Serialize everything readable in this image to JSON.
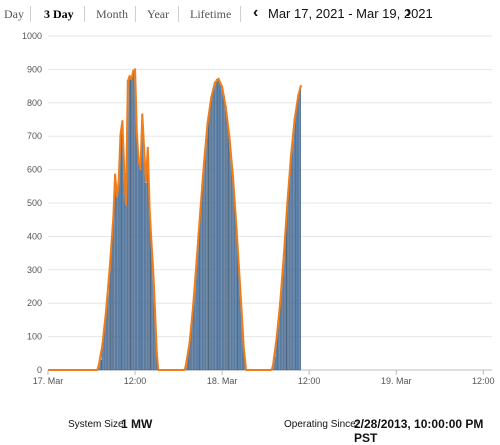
{
  "tabs": [
    {
      "label": "Day",
      "active": false
    },
    {
      "label": "3 Day",
      "active": true
    },
    {
      "label": "Month",
      "active": false
    },
    {
      "label": "Year",
      "active": false
    },
    {
      "label": "Lifetime",
      "active": false
    }
  ],
  "date_range": "Mar 17, 2021 - Mar 19, 2021",
  "footer": {
    "system_size_label": "System Size:",
    "system_size_value": "1 MW",
    "operating_since_label": "Operating Since:",
    "operating_since_value": "2/28/2013, 10:00:00 PM PST"
  },
  "colors": {
    "bar": "#6b8fb5",
    "bar_edge": "#2f4f73",
    "line": "#f07d1a"
  },
  "chart_data": {
    "type": "bar",
    "ylim": [
      0,
      1000
    ],
    "yticks": [
      0,
      100,
      200,
      300,
      400,
      500,
      600,
      700,
      800,
      900,
      1000
    ],
    "x_tick_labels": [
      "17. Mar",
      "12:00",
      "18. Mar",
      "12:00",
      "19. Mar",
      "12:00"
    ],
    "x_tick_hours": [
      0,
      12,
      24,
      36,
      48,
      60
    ],
    "x_range_hours": [
      0,
      61.2
    ],
    "series": [
      {
        "kind": "bars",
        "points": [
          [
            7.0,
            10
          ],
          [
            7.25,
            30
          ],
          [
            7.5,
            70
          ],
          [
            7.75,
            120
          ],
          [
            8.0,
            170
          ],
          [
            8.25,
            230
          ],
          [
            8.5,
            300
          ],
          [
            8.75,
            380
          ],
          [
            9.0,
            450
          ],
          [
            9.25,
            580
          ],
          [
            9.5,
            520
          ],
          [
            9.75,
            560
          ],
          [
            10.0,
            700
          ],
          [
            10.25,
            740
          ],
          [
            10.5,
            600
          ],
          [
            10.75,
            500
          ],
          [
            11.0,
            860
          ],
          [
            11.25,
            880
          ],
          [
            11.5,
            870
          ],
          [
            11.75,
            890
          ],
          [
            12.0,
            900
          ],
          [
            12.25,
            700
          ],
          [
            12.5,
            620
          ],
          [
            12.75,
            600
          ],
          [
            13.0,
            760
          ],
          [
            13.25,
            660
          ],
          [
            13.5,
            560
          ],
          [
            13.75,
            660
          ],
          [
            14.0,
            480
          ],
          [
            14.25,
            380
          ],
          [
            14.5,
            300
          ],
          [
            14.75,
            180
          ],
          [
            15.0,
            50
          ],
          [
            19.0,
            10
          ],
          [
            19.25,
            40
          ],
          [
            19.5,
            80
          ],
          [
            19.75,
            130
          ],
          [
            20.0,
            190
          ],
          [
            20.25,
            260
          ],
          [
            20.5,
            330
          ],
          [
            20.75,
            410
          ],
          [
            21.0,
            480
          ],
          [
            21.25,
            550
          ],
          [
            21.5,
            620
          ],
          [
            21.75,
            690
          ],
          [
            22.0,
            740
          ],
          [
            22.25,
            780
          ],
          [
            22.5,
            815
          ],
          [
            22.75,
            840
          ],
          [
            23.0,
            860
          ],
          [
            23.25,
            870
          ],
          [
            23.5,
            870
          ],
          [
            23.75,
            860
          ],
          [
            24.0,
            845
          ],
          [
            24.25,
            820
          ],
          [
            24.5,
            785
          ],
          [
            24.75,
            745
          ],
          [
            25.0,
            695
          ],
          [
            25.25,
            640
          ],
          [
            25.5,
            575
          ],
          [
            25.75,
            500
          ],
          [
            26.0,
            420
          ],
          [
            26.25,
            330
          ],
          [
            26.5,
            240
          ],
          [
            26.75,
            150
          ],
          [
            27.0,
            60
          ],
          [
            27.25,
            15
          ],
          [
            31.0,
            10
          ],
          [
            31.25,
            40
          ],
          [
            31.5,
            90
          ],
          [
            31.75,
            140
          ],
          [
            32.0,
            200
          ],
          [
            32.25,
            270
          ],
          [
            32.5,
            340
          ],
          [
            32.75,
            420
          ],
          [
            33.0,
            500
          ],
          [
            33.25,
            570
          ],
          [
            33.5,
            640
          ],
          [
            33.75,
            700
          ],
          [
            34.0,
            750
          ],
          [
            34.25,
            790
          ],
          [
            34.5,
            820
          ],
          [
            34.75,
            845
          ]
        ]
      },
      {
        "kind": "line",
        "points": [
          [
            0,
            0
          ],
          [
            6.8,
            0
          ],
          [
            7.0,
            15
          ],
          [
            7.5,
            75
          ],
          [
            8.0,
            175
          ],
          [
            8.5,
            305
          ],
          [
            9.0,
            455
          ],
          [
            9.25,
            585
          ],
          [
            9.5,
            520
          ],
          [
            9.75,
            565
          ],
          [
            10.0,
            705
          ],
          [
            10.25,
            745
          ],
          [
            10.5,
            600
          ],
          [
            10.75,
            495
          ],
          [
            11.0,
            865
          ],
          [
            11.25,
            880
          ],
          [
            11.5,
            870
          ],
          [
            11.75,
            895
          ],
          [
            12.0,
            900
          ],
          [
            12.25,
            705
          ],
          [
            12.5,
            625
          ],
          [
            12.75,
            605
          ],
          [
            13.0,
            765
          ],
          [
            13.25,
            665
          ],
          [
            13.5,
            565
          ],
          [
            13.75,
            665
          ],
          [
            14.0,
            485
          ],
          [
            14.25,
            385
          ],
          [
            14.5,
            300
          ],
          [
            14.75,
            180
          ],
          [
            15.0,
            50
          ],
          [
            15.2,
            0
          ],
          [
            18.8,
            0
          ],
          [
            19.0,
            12
          ],
          [
            19.5,
            80
          ],
          [
            20.0,
            190
          ],
          [
            20.5,
            330
          ],
          [
            21.0,
            480
          ],
          [
            21.5,
            620
          ],
          [
            22.0,
            740
          ],
          [
            22.5,
            815
          ],
          [
            23.0,
            860
          ],
          [
            23.5,
            872
          ],
          [
            24.0,
            848
          ],
          [
            24.5,
            788
          ],
          [
            25.0,
            698
          ],
          [
            25.5,
            578
          ],
          [
            26.0,
            422
          ],
          [
            26.5,
            242
          ],
          [
            27.0,
            62
          ],
          [
            27.3,
            0
          ],
          [
            30.8,
            0
          ],
          [
            31.0,
            12
          ],
          [
            31.5,
            92
          ],
          [
            32.0,
            202
          ],
          [
            32.5,
            342
          ],
          [
            33.0,
            502
          ],
          [
            33.5,
            642
          ],
          [
            34.0,
            752
          ],
          [
            34.5,
            822
          ],
          [
            34.85,
            850
          ]
        ]
      }
    ]
  }
}
